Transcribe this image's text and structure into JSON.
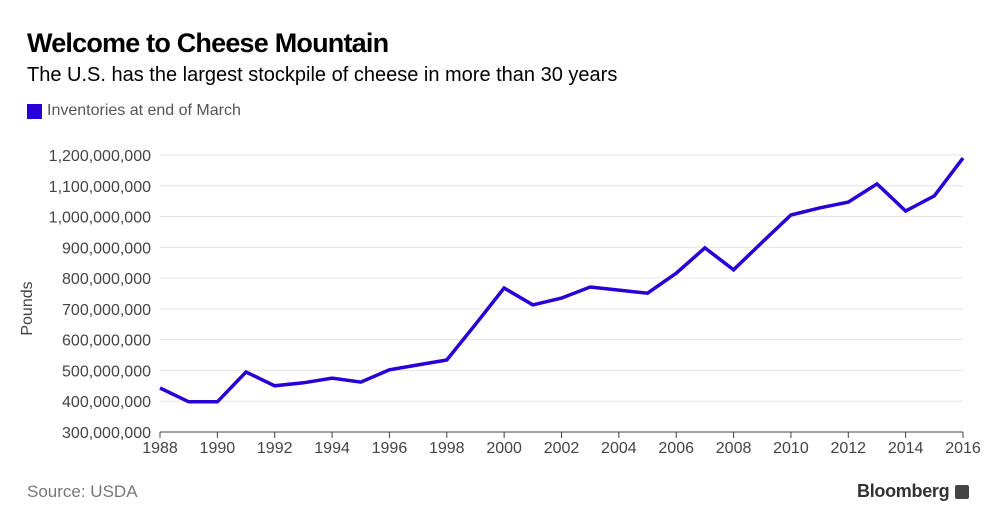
{
  "title": "Welcome to Cheese Mountain",
  "subtitle": "The U.S. has the largest stockpile of cheese in more than 30 years",
  "source": "Source: USDA",
  "brand": "Bloomberg",
  "colors": {
    "line": "#2800d7",
    "grid": "#e6e6e6"
  },
  "chart_data": {
    "type": "line",
    "xlabel": "",
    "ylabel": "Pounds",
    "xlim": [
      1988,
      2016
    ],
    "ylim": [
      300000000,
      1200000000
    ],
    "grid": true,
    "legend": "top-left",
    "x_ticks": [
      "1988",
      "1990",
      "1992",
      "1994",
      "1996",
      "1998",
      "2000",
      "2002",
      "2004",
      "2006",
      "2008",
      "2010",
      "2012",
      "2014",
      "2016"
    ],
    "y_ticks": [
      "300,000,000",
      "400,000,000",
      "500,000,000",
      "600,000,000",
      "700,000,000",
      "800,000,000",
      "900,000,000",
      "1,000,000,000",
      "1,100,000,000",
      "1,200,000,000"
    ],
    "x": [
      1988,
      1989,
      1990,
      1991,
      1992,
      1993,
      1994,
      1995,
      1996,
      1997,
      1998,
      1999,
      2000,
      2001,
      2002,
      2003,
      2004,
      2005,
      2006,
      2007,
      2008,
      2009,
      2010,
      2011,
      2012,
      2013,
      2014,
      2015,
      2016
    ],
    "series": [
      {
        "name": "Inventories at end of March",
        "values": [
          443000000,
          398000000,
          398000000,
          495000000,
          450000000,
          460000000,
          475000000,
          462000000,
          502000000,
          518000000,
          534000000,
          650000000,
          768000000,
          713000000,
          735000000,
          771000000,
          761000000,
          751000000,
          816000000,
          898000000,
          827000000,
          917000000,
          1005000000,
          1028000000,
          1047000000,
          1106000000,
          1018000000,
          1067000000,
          1190000000
        ]
      }
    ]
  }
}
